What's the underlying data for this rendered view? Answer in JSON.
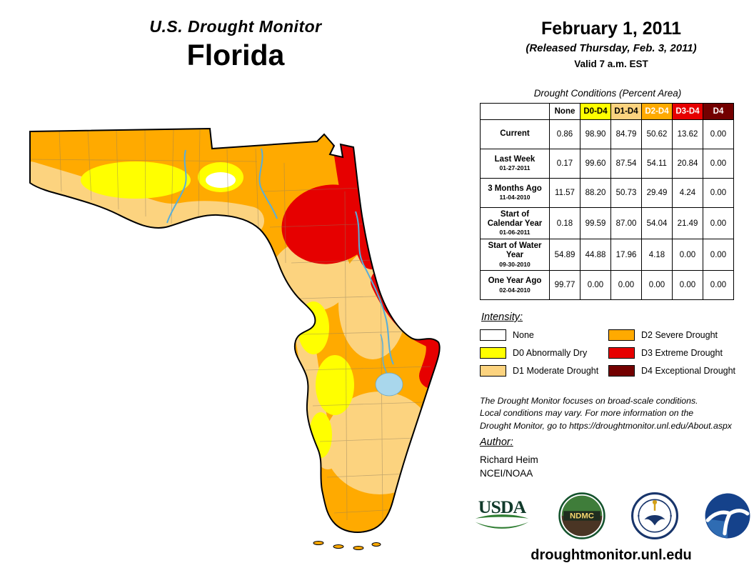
{
  "header": {
    "program": "U.S. Drought Monitor",
    "region": "Florida",
    "date": "February 1, 2011",
    "released": "(Released Thursday, Feb. 3, 2011)",
    "valid": "Valid 7 a.m. EST"
  },
  "table": {
    "caption": "Drought Conditions (Percent Area)",
    "columns": [
      "None",
      "D0-D4",
      "D1-D4",
      "D2-D4",
      "D3-D4",
      "D4"
    ],
    "column_colors": [
      "#FFFFFF",
      "#FFFF00",
      "#FCD37F",
      "#FFAA00",
      "#E60000",
      "#730000"
    ],
    "column_text_colors": [
      "#000000",
      "#000000",
      "#000000",
      "#FFFFFF",
      "#FFFFFF",
      "#FFFFFF"
    ],
    "rows": [
      {
        "label": "Current",
        "date": "",
        "values": [
          "0.86",
          "98.90",
          "84.79",
          "50.62",
          "13.62",
          "0.00"
        ]
      },
      {
        "label": "Last Week",
        "date": "01-27-2011",
        "values": [
          "0.17",
          "99.60",
          "87.54",
          "54.11",
          "20.84",
          "0.00"
        ]
      },
      {
        "label": "3 Months Ago",
        "date": "11-04-2010",
        "values": [
          "11.57",
          "88.20",
          "50.73",
          "29.49",
          "4.24",
          "0.00"
        ]
      },
      {
        "label": "Start of Calendar Year",
        "date": "01-06-2011",
        "values": [
          "0.18",
          "99.59",
          "87.00",
          "54.04",
          "21.49",
          "0.00"
        ]
      },
      {
        "label": "Start of Water Year",
        "date": "09-30-2010",
        "values": [
          "54.89",
          "44.88",
          "17.96",
          "4.18",
          "0.00",
          "0.00"
        ]
      },
      {
        "label": "One Year Ago",
        "date": "02-04-2010",
        "values": [
          "99.77",
          "0.00",
          "0.00",
          "0.00",
          "0.00",
          "0.00"
        ]
      }
    ]
  },
  "legend": {
    "title": "Intensity:",
    "items": [
      {
        "label": "None",
        "color": "#FFFFFF"
      },
      {
        "label": "D0 Abnormally Dry",
        "color": "#FFFF00"
      },
      {
        "label": "D1 Moderate Drought",
        "color": "#FCD37F"
      },
      {
        "label": "D2 Severe Drought",
        "color": "#FFAA00"
      },
      {
        "label": "D3 Extreme Drought",
        "color": "#E60000"
      },
      {
        "label": "D4 Exceptional Drought",
        "color": "#730000"
      }
    ]
  },
  "disclaimer": {
    "lines": [
      "The Drought Monitor focuses on broad-scale conditions.",
      "Local conditions may vary. For more information on the",
      "Drought Monitor, go to https://droughtmonitor.unl.edu/About.aspx"
    ]
  },
  "author": {
    "heading": "Author:",
    "name": "Richard Heim",
    "org": "NCEI/NOAA"
  },
  "logos": {
    "usda": "USDA",
    "ndmc": "NDMC",
    "doc": "department-of-commerce-seal",
    "noaa": "noaa-seal"
  },
  "footer": {
    "url": "droughtmonitor.unl.edu"
  },
  "map": {
    "state": "Florida",
    "border_color": "#000000",
    "water_color": "#A9D7EC",
    "river_color": "#58AEDA"
  }
}
